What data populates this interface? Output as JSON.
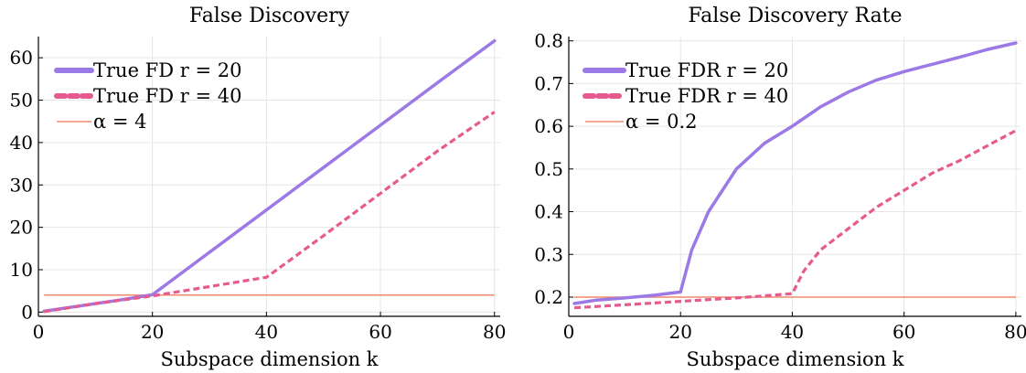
{
  "colors": {
    "r20": "#9b79e6",
    "r40": "#e65a8f",
    "alpha": "#f08a6a",
    "grid": "#e6e6e6",
    "axis": "#000000"
  },
  "chart_data": [
    {
      "type": "line",
      "title": "False Discovery",
      "xlabel": "Subspace dimension k",
      "ylabel": "",
      "xlim": [
        0,
        81
      ],
      "ylim": [
        -1,
        65
      ],
      "xticks": [
        0,
        20,
        40,
        60,
        80
      ],
      "xtick_labels": [
        "0",
        "20",
        "40",
        "60",
        "80"
      ],
      "yticks": [
        0,
        10,
        20,
        30,
        40,
        50,
        60
      ],
      "ytick_labels": [
        "0",
        "10",
        "20",
        "30",
        "40",
        "50",
        "60"
      ],
      "grid": true,
      "legend_position": "top-left",
      "series": [
        {
          "name": "True FD r = 20",
          "style": "solid",
          "x": [
            1,
            5,
            10,
            15,
            20,
            30,
            40,
            50,
            60,
            70,
            80
          ],
          "y": [
            0.2,
            1.0,
            2.0,
            3.0,
            4.1,
            14.1,
            24.1,
            34.1,
            44.1,
            54.1,
            64.0
          ]
        },
        {
          "name": "True FD r = 40",
          "style": "dashed",
          "x": [
            1,
            10,
            20,
            30,
            40,
            50,
            60,
            70,
            80
          ],
          "y": [
            0.1,
            2.0,
            3.8,
            6.0,
            8.2,
            18.0,
            28.0,
            38.0,
            47.2
          ]
        },
        {
          "name": "α = 4",
          "style": "thin",
          "x": [
            1,
            80
          ],
          "y": [
            4,
            4
          ]
        }
      ]
    },
    {
      "type": "line",
      "title": "False Discovery Rate",
      "xlabel": "Subspace dimension k",
      "ylabel": "",
      "xlim": [
        0,
        81
      ],
      "ylim": [
        0.155,
        0.81
      ],
      "xticks": [
        0,
        20,
        40,
        60,
        80
      ],
      "xtick_labels": [
        "0",
        "20",
        "40",
        "60",
        "80"
      ],
      "yticks": [
        0.2,
        0.3,
        0.4,
        0.5,
        0.6,
        0.7,
        0.8
      ],
      "ytick_labels": [
        "0.2",
        "0.3",
        "0.4",
        "0.5",
        "0.6",
        "0.7",
        "0.8"
      ],
      "grid": true,
      "legend_position": "top-left",
      "series": [
        {
          "name": "True FDR r = 20",
          "style": "solid",
          "x": [
            1,
            5,
            10,
            15,
            20,
            22,
            25,
            30,
            35,
            40,
            45,
            50,
            55,
            60,
            65,
            70,
            75,
            80
          ],
          "y": [
            0.185,
            0.193,
            0.198,
            0.204,
            0.212,
            0.31,
            0.4,
            0.5,
            0.56,
            0.6,
            0.645,
            0.68,
            0.708,
            0.728,
            0.745,
            0.762,
            0.78,
            0.795
          ]
        },
        {
          "name": "True FDR r = 40",
          "style": "dashed",
          "x": [
            1,
            10,
            20,
            30,
            40,
            42,
            45,
            50,
            55,
            60,
            65,
            70,
            75,
            80
          ],
          "y": [
            0.175,
            0.182,
            0.19,
            0.198,
            0.208,
            0.26,
            0.31,
            0.36,
            0.41,
            0.45,
            0.49,
            0.52,
            0.555,
            0.59
          ]
        },
        {
          "name": "α = 0.2",
          "style": "thin",
          "x": [
            1,
            80
          ],
          "y": [
            0.2,
            0.2
          ]
        }
      ]
    }
  ]
}
